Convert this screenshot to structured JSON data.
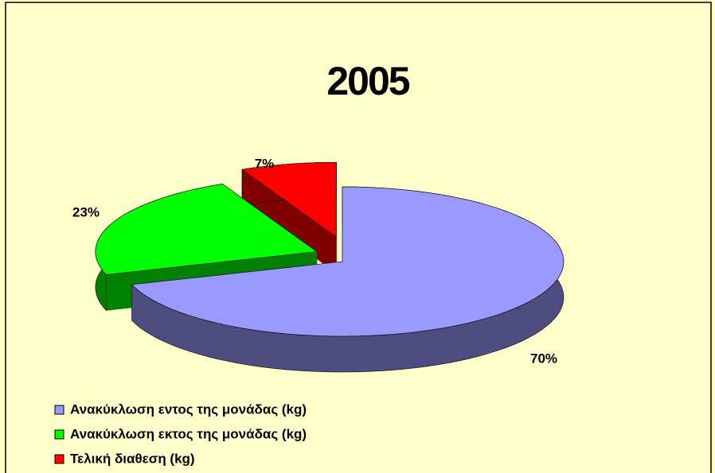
{
  "chart_data": {
    "type": "pie",
    "title": "2005",
    "categories": [
      "Ανακύκλωση εντος της μονάδας (kg)",
      "Ανακύκλωση εκτος της μονάδας (kg)",
      "Τελική διαθεση (kg)"
    ],
    "values": [
      70,
      23,
      7
    ],
    "value_labels": [
      "70%",
      "23%",
      "7%"
    ],
    "colors": [
      "#9999ff",
      "#00ff00",
      "#ff0000"
    ],
    "legend": "bottom-left"
  }
}
